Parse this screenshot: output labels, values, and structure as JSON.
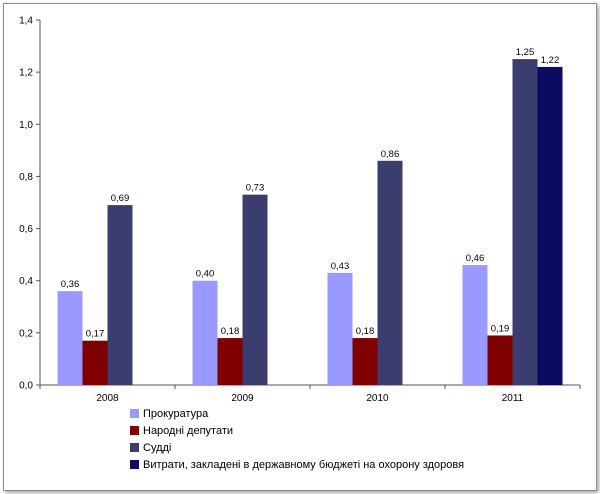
{
  "chart_data": {
    "type": "bar",
    "categories": [
      "2008",
      "2009",
      "2010",
      "2011"
    ],
    "series": [
      {
        "name": "Прокуратура",
        "color": "#9999ff",
        "values": [
          0.36,
          0.4,
          0.43,
          0.46
        ],
        "labels": [
          "0,36",
          "0,40",
          "0,43",
          "0,46"
        ]
      },
      {
        "name": "Народні депутати",
        "color": "#800000",
        "values": [
          0.17,
          0.18,
          0.18,
          0.19
        ],
        "labels": [
          "0,17",
          "0,18",
          "0,18",
          "0,19"
        ]
      },
      {
        "name": "Судді",
        "color": "#3b3d6e",
        "values": [
          0.69,
          0.73,
          0.86,
          1.25
        ],
        "labels": [
          "0,69",
          "0,73",
          "0,86",
          "1,25"
        ]
      },
      {
        "name": "Витрати, закладені в державному бюджеті на охорону здоровя",
        "color": "#0b0b62",
        "values": [
          null,
          null,
          null,
          1.22
        ],
        "labels": [
          "",
          "",
          "",
          "1,22"
        ]
      }
    ],
    "ylim": [
      0,
      1.4
    ],
    "yticks": [
      "0,0",
      "0,2",
      "0,4",
      "0,6",
      "0,8",
      "1,0",
      "1,2",
      "1,4"
    ],
    "grid": false,
    "legend_position": "bottom-left",
    "title": "",
    "xlabel": "",
    "ylabel": ""
  }
}
